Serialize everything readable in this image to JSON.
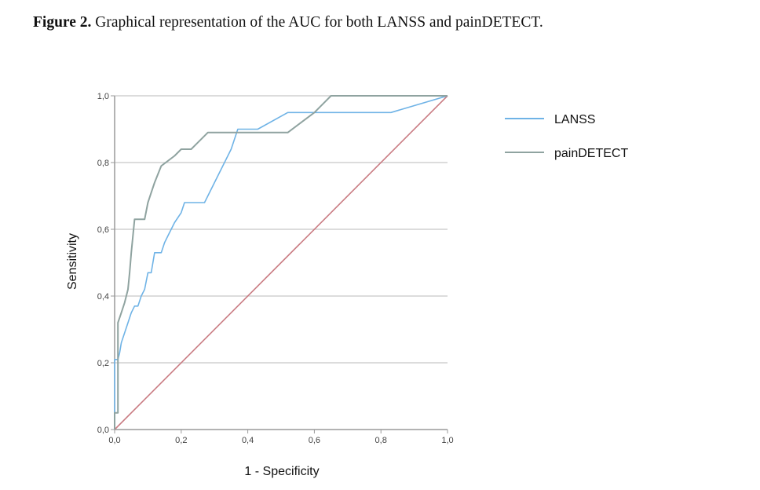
{
  "figure": {
    "label": "Figure 2.",
    "caption": " Graphical representation of the AUC for both LANSS and painDETECT."
  },
  "chart_data": {
    "type": "line",
    "xlabel": "1 - Specificity",
    "ylabel": "Sensitivity",
    "xlim": [
      0,
      1
    ],
    "ylim": [
      0,
      1
    ],
    "x_ticks": [
      "0,0",
      "0,2",
      "0,4",
      "0,6",
      "0,8",
      "1,0"
    ],
    "y_ticks": [
      "0,0",
      "0,2",
      "0,4",
      "0,6",
      "0,8",
      "1,0"
    ],
    "grid": "horizontal",
    "legend_position": "right",
    "series": [
      {
        "name": "LANSS",
        "color": "#6fb3e6",
        "x": [
          0,
          0,
          0.01,
          0.015,
          0.02,
          0.04,
          0.05,
          0.06,
          0.07,
          0.08,
          0.09,
          0.1,
          0.11,
          0.12,
          0.14,
          0.15,
          0.16,
          0.18,
          0.2,
          0.21,
          0.22,
          0.27,
          0.3,
          0.35,
          0.37,
          0.39,
          0.43,
          0.52,
          0.6,
          0.83,
          1.0
        ],
        "y": [
          0,
          0.21,
          0.21,
          0.23,
          0.26,
          0.32,
          0.35,
          0.37,
          0.37,
          0.4,
          0.42,
          0.47,
          0.47,
          0.53,
          0.53,
          0.56,
          0.58,
          0.62,
          0.65,
          0.68,
          0.68,
          0.68,
          0.74,
          0.84,
          0.9,
          0.9,
          0.9,
          0.95,
          0.95,
          0.95,
          1.0
        ]
      },
      {
        "name": "painDETECT",
        "color": "#8fa3a0",
        "x": [
          0,
          0,
          0.01,
          0.01,
          0.02,
          0.03,
          0.04,
          0.045,
          0.05,
          0.055,
          0.06,
          0.08,
          0.09,
          0.1,
          0.11,
          0.12,
          0.14,
          0.18,
          0.2,
          0.23,
          0.26,
          0.28,
          0.35,
          0.43,
          0.5,
          0.52,
          0.6,
          0.65,
          0.68,
          0.83,
          1.0
        ],
        "y": [
          0,
          0.05,
          0.05,
          0.32,
          0.35,
          0.38,
          0.42,
          0.47,
          0.53,
          0.58,
          0.63,
          0.63,
          0.63,
          0.68,
          0.71,
          0.74,
          0.79,
          0.82,
          0.84,
          0.84,
          0.87,
          0.89,
          0.89,
          0.89,
          0.89,
          0.89,
          0.95,
          1.0,
          1.0,
          1.0,
          1.0
        ]
      }
    ],
    "reference_line": {
      "color": "#c97b82",
      "x": [
        0,
        1
      ],
      "y": [
        0,
        1
      ]
    }
  }
}
